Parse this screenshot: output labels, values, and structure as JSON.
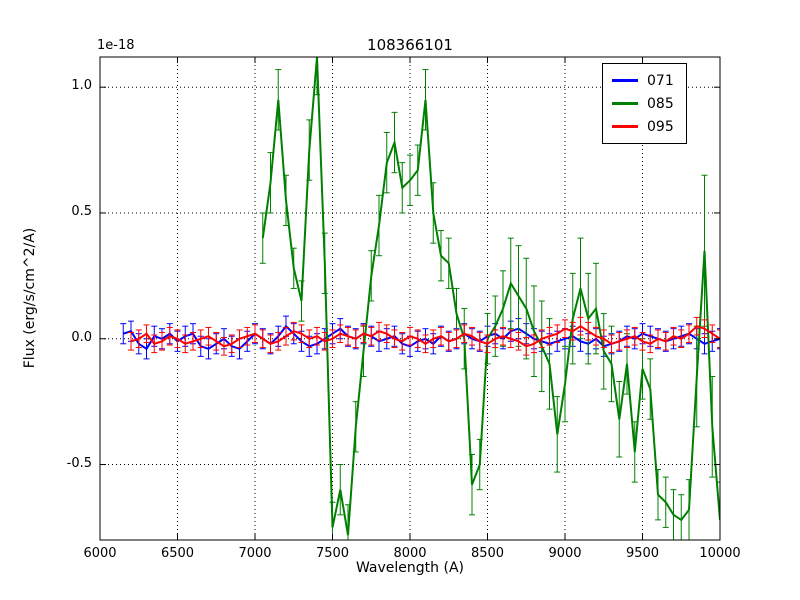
{
  "figure": {
    "background": "#ffffff",
    "axis_color": "#000000",
    "grid_style": "dotted"
  },
  "chart_data": {
    "type": "line",
    "title": "108366101",
    "xlabel": "Wavelength (A)",
    "ylabel": "Flux (erg/s/cm^2/A)",
    "y_scale_offset": "1e-18",
    "xlim": [
      6000,
      10000
    ],
    "ylim": [
      -0.8,
      1.12
    ],
    "xticks": [
      6000,
      6500,
      7000,
      7500,
      8000,
      8500,
      9000,
      9500,
      10000
    ],
    "yticks": [
      -0.5,
      0.0,
      0.5,
      1.0
    ],
    "grid": true,
    "legend_position": "upper right",
    "series": [
      {
        "name": "071",
        "color": "#0000ff",
        "x_start": 6150,
        "x_step": 50,
        "err": 0.04,
        "values": [
          0.02,
          0.03,
          -0.02,
          -0.04,
          0.01,
          0.0,
          0.02,
          -0.01,
          0.01,
          0.02,
          -0.03,
          -0.04,
          -0.02,
          0.0,
          -0.03,
          -0.04,
          -0.01,
          0.02,
          0.0,
          -0.02,
          0.01,
          0.05,
          0.02,
          -0.01,
          -0.03,
          -0.02,
          0.0,
          0.02,
          0.04,
          0.01,
          0.0,
          0.02,
          0.01,
          -0.01,
          0.0,
          0.01,
          -0.02,
          -0.03,
          -0.01,
          0.0,
          -0.02,
          0.01,
          -0.01,
          0.0,
          0.02,
          0.0,
          -0.01,
          0.01,
          0.02,
          0.0,
          0.03,
          0.04,
          0.02,
          0.0,
          -0.01,
          -0.02,
          -0.01,
          0.0,
          0.01,
          -0.01,
          -0.02,
          0.0,
          -0.03,
          -0.02,
          -0.01,
          0.01,
          0.0,
          0.02,
          0.01,
          0.0,
          -0.01,
          0.0,
          0.01,
          0.02,
          0.0,
          -0.02,
          -0.01,
          0.0
        ]
      },
      {
        "name": "085",
        "color": "#008000",
        "x_start": 7050,
        "x_step": 50,
        "err": [
          0.1,
          0.12,
          0.12,
          0.1,
          0.08,
          0.08,
          0.12,
          0.15,
          0.12,
          0.1,
          0.1,
          0.12,
          0.1,
          0.1,
          0.1,
          0.12,
          0.12,
          0.12,
          0.1,
          0.1,
          0.1,
          0.12,
          0.12,
          0.1,
          0.1,
          0.1,
          0.12,
          0.12,
          0.1,
          0.1,
          0.12,
          0.15,
          0.18,
          0.2,
          0.2,
          0.18,
          0.18,
          0.18,
          0.15,
          0.15,
          0.18,
          0.2,
          0.18,
          0.18,
          0.15,
          0.15,
          0.15,
          0.12,
          0.12,
          0.12,
          0.12,
          0.1,
          0.1,
          0.1,
          0.1,
          0.12,
          0.2,
          0.3,
          0.2,
          0.15
        ],
        "values": [
          0.4,
          0.62,
          0.95,
          0.55,
          0.28,
          0.15,
          0.75,
          1.12,
          0.3,
          -0.75,
          -0.6,
          -0.78,
          -0.35,
          -0.05,
          0.25,
          0.45,
          0.7,
          0.78,
          0.6,
          0.63,
          0.67,
          0.95,
          0.5,
          0.33,
          0.3,
          0.1,
          0.0,
          -0.58,
          -0.5,
          0.0,
          0.05,
          0.12,
          0.22,
          0.17,
          0.12,
          0.03,
          -0.03,
          -0.1,
          -0.38,
          -0.18,
          0.08,
          0.2,
          0.08,
          0.12,
          -0.05,
          -0.1,
          -0.32,
          -0.1,
          -0.45,
          -0.12,
          -0.2,
          -0.62,
          -0.65,
          -0.7,
          -0.72,
          -0.68,
          -0.15,
          0.35,
          -0.35,
          -0.72
        ]
      },
      {
        "name": "095",
        "color": "#ff0000",
        "x_start": 6200,
        "x_step": 50,
        "err": 0.035,
        "values": [
          -0.01,
          0.0,
          0.02,
          -0.02,
          -0.01,
          0.01,
          0.0,
          -0.02,
          -0.01,
          0.0,
          0.01,
          -0.01,
          -0.03,
          -0.02,
          0.0,
          0.01,
          0.02,
          0.0,
          -0.02,
          -0.01,
          0.01,
          0.03,
          0.02,
          0.0,
          0.01,
          -0.01,
          0.0,
          0.02,
          0.01,
          0.0,
          0.02,
          0.01,
          0.03,
          0.02,
          0.0,
          -0.01,
          0.01,
          0.0,
          -0.02,
          0.0,
          0.01,
          -0.01,
          0.0,
          0.02,
          0.01,
          -0.01,
          -0.02,
          0.0,
          0.01,
          0.0,
          -0.01,
          -0.03,
          -0.02,
          0.0,
          0.01,
          0.02,
          0.04,
          0.03,
          0.05,
          0.03,
          0.01,
          0.0,
          -0.02,
          -0.01,
          0.0,
          0.01,
          -0.01,
          -0.02,
          0.0,
          -0.01,
          0.01,
          0.0,
          0.02,
          0.05,
          0.04,
          0.02,
          0.0
        ]
      }
    ]
  }
}
